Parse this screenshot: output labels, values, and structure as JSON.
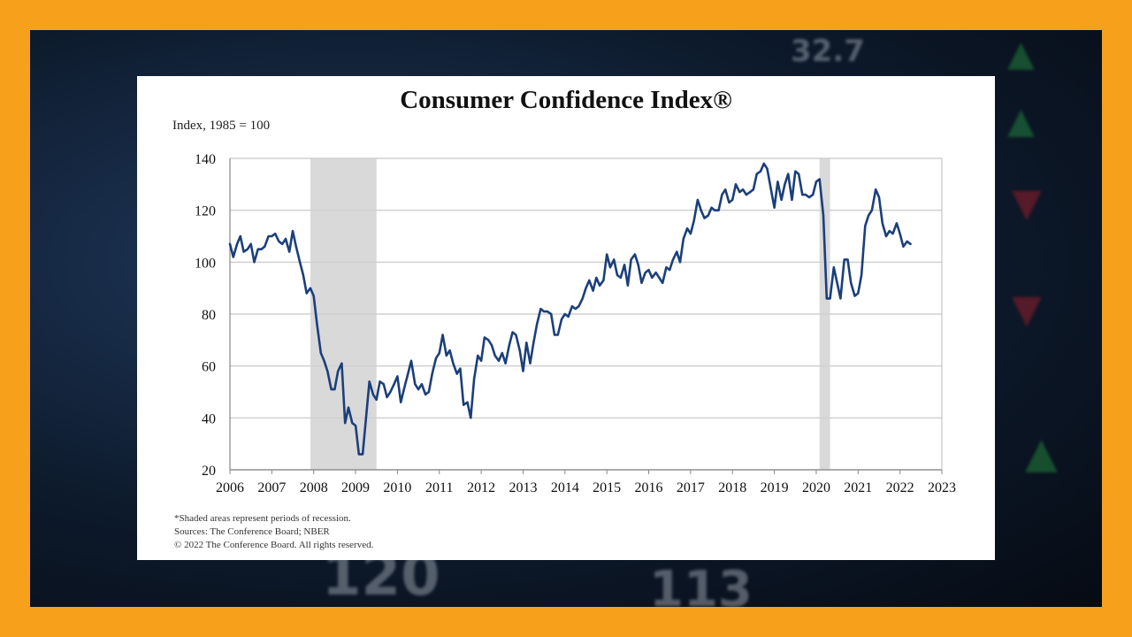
{
  "colors": {
    "frame_border": "#f7a01c",
    "line": "#1b3f7a",
    "recession": "#d9d9d9",
    "grid": "#d0d0d0"
  },
  "background_tickers": [
    {
      "text": "120",
      "color": "#dfe6ee"
    },
    {
      "text": "113",
      "color": "#dfe6ee"
    },
    {
      "text": "32.7",
      "color": "#dfe6ee"
    },
    {
      "text": "▲",
      "color": "#2fbf4a"
    },
    {
      "text": "▲",
      "color": "#2fbf4a"
    },
    {
      "text": "▼",
      "color": "#e0202a"
    },
    {
      "text": "▼",
      "color": "#e0202a"
    },
    {
      "text": "▲",
      "color": "#2fbf4a"
    }
  ],
  "chart_data": {
    "type": "line",
    "title": "Consumer Confidence Index®",
    "ylabel": "Index, 1985 = 100",
    "xlabel": "",
    "xlim": [
      2006,
      2023
    ],
    "ylim": [
      20,
      140
    ],
    "yticks": [
      20,
      40,
      60,
      80,
      100,
      120,
      140
    ],
    "xticks": [
      2006,
      2007,
      2008,
      2009,
      2010,
      2011,
      2012,
      2013,
      2014,
      2015,
      2016,
      2017,
      2018,
      2019,
      2020,
      2021,
      2022,
      2023
    ],
    "recessions": [
      [
        2007.92,
        2009.5
      ],
      [
        2020.08,
        2020.33
      ]
    ],
    "series": [
      {
        "name": "Consumer Confidence Index",
        "points": [
          [
            2006.0,
            107
          ],
          [
            2006.08,
            102
          ],
          [
            2006.17,
            107
          ],
          [
            2006.25,
            110
          ],
          [
            2006.33,
            104
          ],
          [
            2006.42,
            105
          ],
          [
            2006.5,
            107
          ],
          [
            2006.58,
            100
          ],
          [
            2006.67,
            105
          ],
          [
            2006.75,
            105
          ],
          [
            2006.83,
            106
          ],
          [
            2006.92,
            110
          ],
          [
            2007.0,
            110
          ],
          [
            2007.08,
            111
          ],
          [
            2007.17,
            108
          ],
          [
            2007.25,
            107
          ],
          [
            2007.33,
            109
          ],
          [
            2007.42,
            104
          ],
          [
            2007.5,
            112
          ],
          [
            2007.58,
            106
          ],
          [
            2007.67,
            100
          ],
          [
            2007.75,
            95
          ],
          [
            2007.83,
            88
          ],
          [
            2007.92,
            90
          ],
          [
            2008.0,
            87
          ],
          [
            2008.08,
            76
          ],
          [
            2008.17,
            65
          ],
          [
            2008.25,
            62
          ],
          [
            2008.33,
            58
          ],
          [
            2008.42,
            51
          ],
          [
            2008.5,
            51
          ],
          [
            2008.58,
            58
          ],
          [
            2008.67,
            61
          ],
          [
            2008.75,
            38
          ],
          [
            2008.83,
            44
          ],
          [
            2008.92,
            38
          ],
          [
            2009.0,
            37
          ],
          [
            2009.08,
            26
          ],
          [
            2009.17,
            26
          ],
          [
            2009.25,
            40
          ],
          [
            2009.33,
            54
          ],
          [
            2009.42,
            49
          ],
          [
            2009.5,
            47
          ],
          [
            2009.58,
            54
          ],
          [
            2009.67,
            53
          ],
          [
            2009.75,
            48
          ],
          [
            2009.83,
            50
          ],
          [
            2009.92,
            53
          ],
          [
            2010.0,
            56
          ],
          [
            2010.08,
            46
          ],
          [
            2010.17,
            52
          ],
          [
            2010.25,
            57
          ],
          [
            2010.33,
            62
          ],
          [
            2010.42,
            53
          ],
          [
            2010.5,
            51
          ],
          [
            2010.58,
            53
          ],
          [
            2010.67,
            49
          ],
          [
            2010.75,
            50
          ],
          [
            2010.83,
            57
          ],
          [
            2010.92,
            63
          ],
          [
            2011.0,
            65
          ],
          [
            2011.08,
            72
          ],
          [
            2011.17,
            64
          ],
          [
            2011.25,
            66
          ],
          [
            2011.33,
            61
          ],
          [
            2011.42,
            57
          ],
          [
            2011.5,
            59
          ],
          [
            2011.58,
            45
          ],
          [
            2011.67,
            46
          ],
          [
            2011.75,
            40
          ],
          [
            2011.83,
            55
          ],
          [
            2011.92,
            64
          ],
          [
            2012.0,
            62
          ],
          [
            2012.08,
            71
          ],
          [
            2012.17,
            70
          ],
          [
            2012.25,
            68
          ],
          [
            2012.33,
            64
          ],
          [
            2012.42,
            62
          ],
          [
            2012.5,
            65
          ],
          [
            2012.58,
            61
          ],
          [
            2012.67,
            68
          ],
          [
            2012.75,
            73
          ],
          [
            2012.83,
            72
          ],
          [
            2012.92,
            66
          ],
          [
            2013.0,
            58
          ],
          [
            2013.08,
            69
          ],
          [
            2013.17,
            61
          ],
          [
            2013.25,
            69
          ],
          [
            2013.33,
            76
          ],
          [
            2013.42,
            82
          ],
          [
            2013.5,
            81
          ],
          [
            2013.58,
            81
          ],
          [
            2013.67,
            80
          ],
          [
            2013.75,
            72
          ],
          [
            2013.83,
            72
          ],
          [
            2013.92,
            78
          ],
          [
            2014.0,
            80
          ],
          [
            2014.08,
            79
          ],
          [
            2014.17,
            83
          ],
          [
            2014.25,
            82
          ],
          [
            2014.33,
            83
          ],
          [
            2014.42,
            86
          ],
          [
            2014.5,
            90
          ],
          [
            2014.58,
            93
          ],
          [
            2014.67,
            89
          ],
          [
            2014.75,
            94
          ],
          [
            2014.83,
            91
          ],
          [
            2014.92,
            93
          ],
          [
            2015.0,
            103
          ],
          [
            2015.08,
            98
          ],
          [
            2015.17,
            101
          ],
          [
            2015.25,
            95
          ],
          [
            2015.33,
            94
          ],
          [
            2015.42,
            99
          ],
          [
            2015.5,
            91
          ],
          [
            2015.58,
            101
          ],
          [
            2015.67,
            103
          ],
          [
            2015.75,
            99
          ],
          [
            2015.83,
            92
          ],
          [
            2015.92,
            96
          ],
          [
            2016.0,
            97
          ],
          [
            2016.08,
            94
          ],
          [
            2016.17,
            96
          ],
          [
            2016.25,
            94
          ],
          [
            2016.33,
            92
          ],
          [
            2016.42,
            98
          ],
          [
            2016.5,
            97
          ],
          [
            2016.58,
            101
          ],
          [
            2016.67,
            104
          ],
          [
            2016.75,
            100
          ],
          [
            2016.83,
            109
          ],
          [
            2016.92,
            113
          ],
          [
            2017.0,
            111
          ],
          [
            2017.08,
            116
          ],
          [
            2017.17,
            124
          ],
          [
            2017.25,
            120
          ],
          [
            2017.33,
            117
          ],
          [
            2017.42,
            118
          ],
          [
            2017.5,
            121
          ],
          [
            2017.58,
            120
          ],
          [
            2017.67,
            120
          ],
          [
            2017.75,
            126
          ],
          [
            2017.83,
            128
          ],
          [
            2017.92,
            123
          ],
          [
            2018.0,
            124
          ],
          [
            2018.08,
            130
          ],
          [
            2018.17,
            127
          ],
          [
            2018.25,
            128
          ],
          [
            2018.33,
            126
          ],
          [
            2018.42,
            127
          ],
          [
            2018.5,
            128
          ],
          [
            2018.58,
            134
          ],
          [
            2018.67,
            135
          ],
          [
            2018.75,
            138
          ],
          [
            2018.83,
            136
          ],
          [
            2018.92,
            128
          ],
          [
            2019.0,
            121
          ],
          [
            2019.08,
            131
          ],
          [
            2019.17,
            124
          ],
          [
            2019.25,
            130
          ],
          [
            2019.33,
            134
          ],
          [
            2019.42,
            124
          ],
          [
            2019.5,
            135
          ],
          [
            2019.58,
            134
          ],
          [
            2019.67,
            126
          ],
          [
            2019.75,
            126
          ],
          [
            2019.83,
            125
          ],
          [
            2019.92,
            126
          ],
          [
            2020.0,
            131
          ],
          [
            2020.08,
            132
          ],
          [
            2020.17,
            118
          ],
          [
            2020.25,
            86
          ],
          [
            2020.33,
            86
          ],
          [
            2020.42,
            98
          ],
          [
            2020.5,
            92
          ],
          [
            2020.58,
            86
          ],
          [
            2020.67,
            101
          ],
          [
            2020.75,
            101
          ],
          [
            2020.83,
            92
          ],
          [
            2020.92,
            87
          ],
          [
            2021.0,
            88
          ],
          [
            2021.08,
            95
          ],
          [
            2021.17,
            114
          ],
          [
            2021.25,
            118
          ],
          [
            2021.33,
            120
          ],
          [
            2021.42,
            128
          ],
          [
            2021.5,
            125
          ],
          [
            2021.58,
            115
          ],
          [
            2021.67,
            110
          ],
          [
            2021.75,
            112
          ],
          [
            2021.83,
            111
          ],
          [
            2021.92,
            115
          ],
          [
            2022.0,
            111
          ],
          [
            2022.08,
            106
          ],
          [
            2022.17,
            108
          ],
          [
            2022.25,
            107
          ]
        ]
      }
    ],
    "footnotes": [
      "*Shaded areas represent periods of recession.",
      "Sources: The Conference Board; NBER",
      "© 2022 The Conference Board. All rights reserved."
    ]
  }
}
